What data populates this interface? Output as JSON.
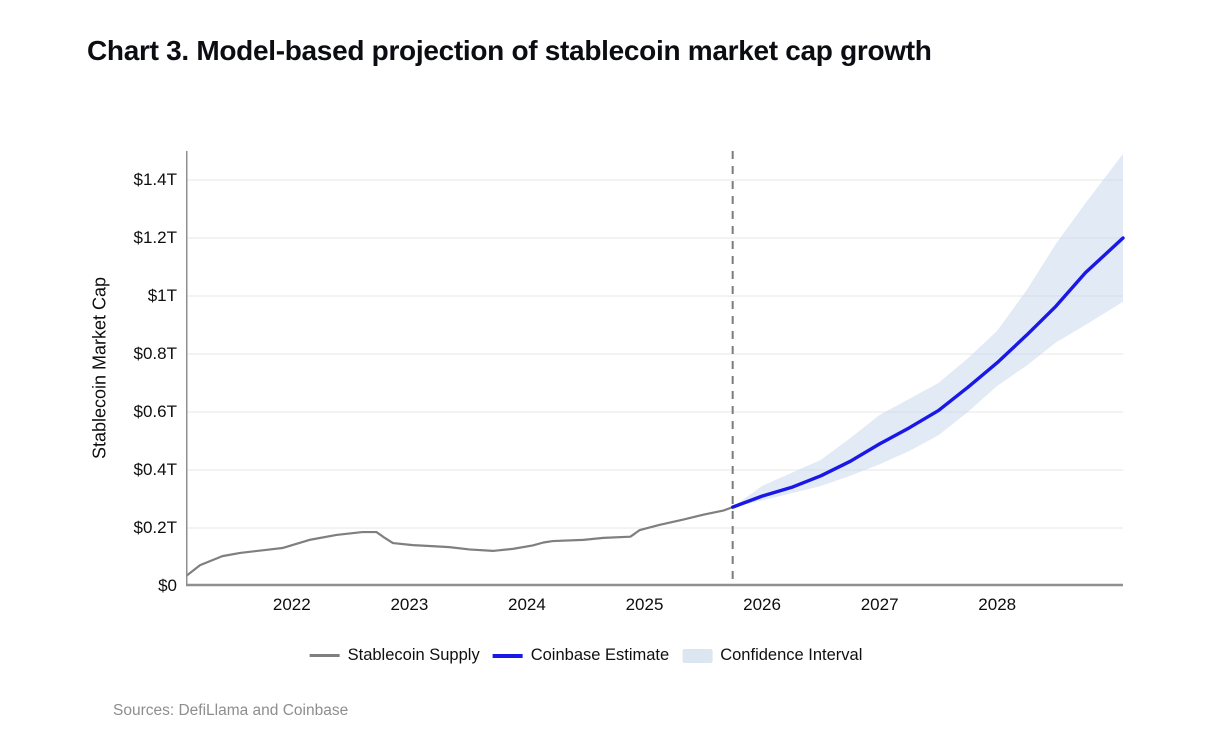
{
  "title": "Chart 3. Model-based projection of stablecoin market cap growth",
  "source_note": "Sources: DefiLlama and Coinbase",
  "colors": {
    "historical_line": "#7f7f7f",
    "estimate_line": "#1a18e6",
    "confidence_band": "rgba(200,216,236,0.55)",
    "band_swatch": "#dce6f1",
    "gridline": "#e7e7e7",
    "axis_line": "#8f8f8f",
    "dashed_divider": "#7c7c7c",
    "title_text": "#0c0d12",
    "tick_text": "#0e0e0e",
    "source_text": "#8e8e8e"
  },
  "chart_data": {
    "type": "line",
    "title": "Chart 3. Model-based projection of stablecoin market cap growth",
    "xlabel": "",
    "ylabel": "Stablecoin Market Cap",
    "x_range": [
      2021.1,
      2029.07
    ],
    "y_range": [
      0,
      1.5
    ],
    "grid": true,
    "y_ticks": [
      {
        "value": 0.0,
        "label": "$0"
      },
      {
        "value": 0.2,
        "label": "$0.2T"
      },
      {
        "value": 0.4,
        "label": "$0.4T"
      },
      {
        "value": 0.6,
        "label": "$0.6T"
      },
      {
        "value": 0.8,
        "label": "$0.8T"
      },
      {
        "value": 1.0,
        "label": "$1T"
      },
      {
        "value": 1.2,
        "label": "$1.2T"
      },
      {
        "value": 1.4,
        "label": "$1.4T"
      }
    ],
    "x_ticks": [
      {
        "value": 2022,
        "label": "2022"
      },
      {
        "value": 2023,
        "label": "2023"
      },
      {
        "value": 2024,
        "label": "2024"
      },
      {
        "value": 2025,
        "label": "2025"
      },
      {
        "value": 2026,
        "label": "2026"
      },
      {
        "value": 2027,
        "label": "2027"
      },
      {
        "value": 2028,
        "label": "2028"
      }
    ],
    "forecast_divider_x": 2025.75,
    "series": [
      {
        "name": "Stablecoin Supply",
        "role": "historical",
        "x": [
          2021.1,
          2021.22,
          2021.41,
          2021.56,
          2021.77,
          2021.92,
          2022.15,
          2022.38,
          2022.6,
          2022.72,
          2022.79,
          2022.86,
          2023.03,
          2023.17,
          2023.34,
          2023.51,
          2023.71,
          2023.88,
          2024.05,
          2024.14,
          2024.22,
          2024.48,
          2024.65,
          2024.88,
          2024.96,
          2025.13,
          2025.33,
          2025.5,
          2025.67,
          2025.75
        ],
        "y": [
          0.034,
          0.072,
          0.103,
          0.114,
          0.124,
          0.131,
          0.159,
          0.176,
          0.186,
          0.186,
          0.166,
          0.148,
          0.141,
          0.138,
          0.134,
          0.126,
          0.121,
          0.128,
          0.14,
          0.15,
          0.155,
          0.159,
          0.166,
          0.17,
          0.193,
          0.211,
          0.229,
          0.246,
          0.26,
          0.272
        ]
      },
      {
        "name": "Coinbase Estimate",
        "role": "projection",
        "x": [
          2025.75,
          2026.0,
          2026.25,
          2026.5,
          2026.75,
          2027.0,
          2027.25,
          2027.5,
          2027.75,
          2028.0,
          2028.25,
          2028.5,
          2028.75,
          2029.07
        ],
        "y": [
          0.272,
          0.31,
          0.34,
          0.38,
          0.43,
          0.49,
          0.545,
          0.605,
          0.685,
          0.77,
          0.865,
          0.965,
          1.08,
          1.2
        ]
      }
    ],
    "band": {
      "name": "Confidence Interval",
      "x": [
        2025.75,
        2026.0,
        2026.25,
        2026.5,
        2026.75,
        2027.0,
        2027.25,
        2027.5,
        2027.75,
        2028.0,
        2028.25,
        2028.5,
        2028.75,
        2029.07
      ],
      "lower": [
        0.272,
        0.295,
        0.32,
        0.345,
        0.38,
        0.42,
        0.465,
        0.52,
        0.6,
        0.69,
        0.76,
        0.84,
        0.9,
        0.98
      ],
      "upper": [
        0.272,
        0.345,
        0.39,
        0.435,
        0.51,
        0.59,
        0.645,
        0.7,
        0.785,
        0.88,
        1.02,
        1.18,
        1.32,
        1.49
      ]
    },
    "legend": [
      {
        "label": "Stablecoin Supply",
        "swatch": "line",
        "thickness": 3,
        "color_key": "historical_line"
      },
      {
        "label": "Coinbase Estimate",
        "swatch": "line",
        "thickness": 4,
        "color_key": "estimate_line"
      },
      {
        "label": "Confidence Interval",
        "swatch": "band",
        "color_key": "band_swatch"
      }
    ],
    "legend_position": "bottom-center"
  }
}
